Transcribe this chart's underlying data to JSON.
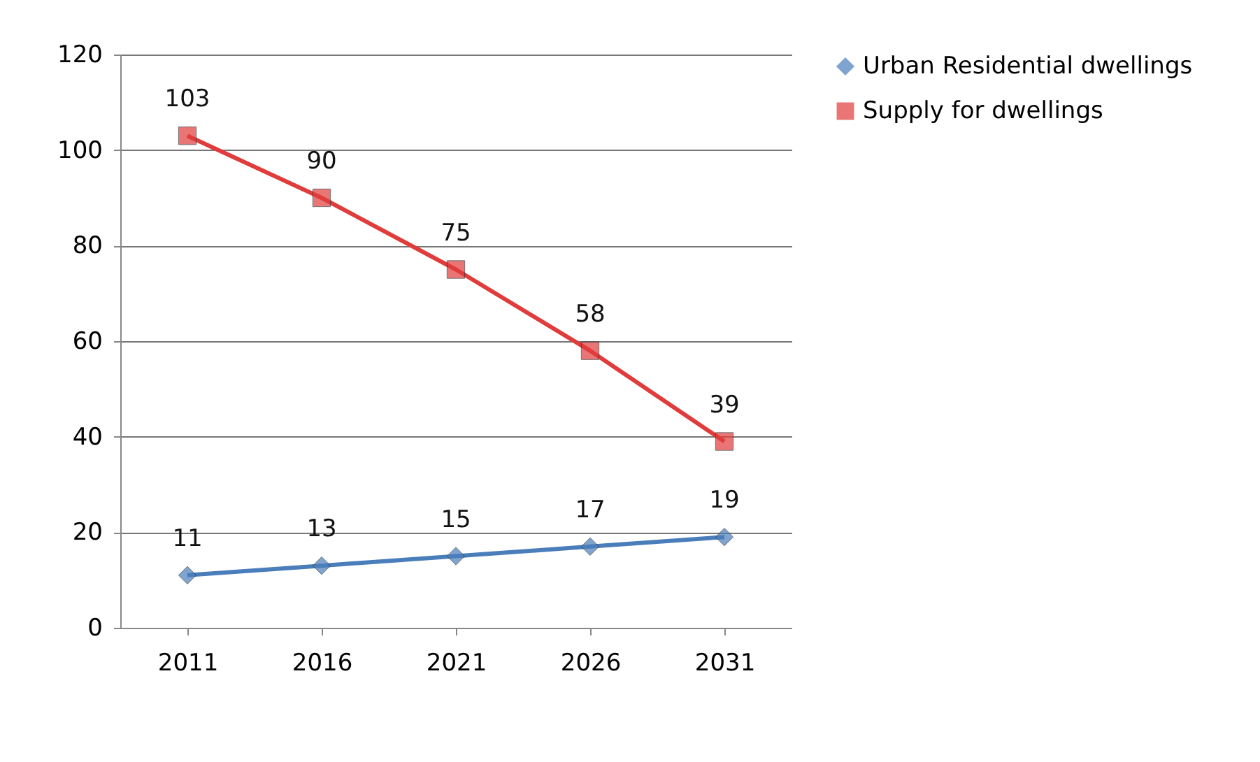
{
  "chart_data": {
    "type": "line",
    "categories": [
      "2011",
      "2016",
      "2021",
      "2026",
      "2031"
    ],
    "series": [
      {
        "name": "Urban Residential dwellings",
        "color": "#4a7ebb",
        "marker": "diamond",
        "values": [
          11,
          13,
          15,
          17,
          19
        ]
      },
      {
        "name": "Supply for dwellings",
        "color": "#e03c3c",
        "marker": "square",
        "values": [
          103,
          90,
          75,
          58,
          39
        ]
      }
    ],
    "ylim": [
      0,
      120
    ],
    "yticks": [
      0,
      20,
      40,
      60,
      80,
      100,
      120
    ],
    "grid": "y",
    "legend": "right",
    "data_labels": true
  }
}
